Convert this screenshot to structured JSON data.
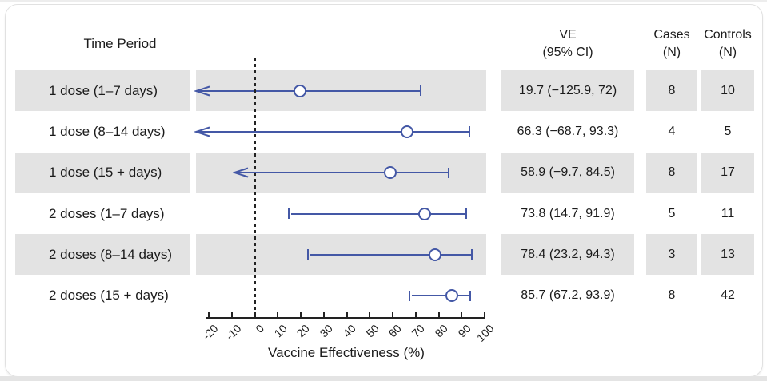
{
  "header": {
    "time_period": "Time Period",
    "ve_line1": "VE",
    "ve_line2": "(95% CI)",
    "cases_line1": "Cases",
    "cases_line2": "(N)",
    "controls_line1": "Controls",
    "controls_line2": "(N)"
  },
  "colors": {
    "line_blue": "#4458a6",
    "band_gray": "#e3e3e3",
    "text_dark": "#1b1b1b",
    "axis_black": "#222222",
    "card_border": "#e1e1e1"
  },
  "chart_data": {
    "type": "forest",
    "title": "",
    "xlabel": "Vaccine Effectiveness (%)",
    "xlim": [
      -20,
      100
    ],
    "x_ticks": [
      -20,
      -10,
      0,
      10,
      20,
      30,
      40,
      50,
      60,
      70,
      80,
      90,
      100
    ],
    "tick_labels": [
      "-20",
      "-10",
      "0",
      "10",
      "20",
      "30",
      "40",
      "50",
      "60",
      "70",
      "80",
      "90",
      "100"
    ],
    "zero_reference_line": 0,
    "legend": "none",
    "grid": "off",
    "rows": [
      {
        "label": "1 dose (1–7 days)",
        "ve": 19.7,
        "ci_low": -125.9,
        "ci_high": 72,
        "ve_text": "19.7 (−125.9, 72)",
        "cases": "8",
        "controls": "10",
        "left_end": "arrow",
        "shaded": true
      },
      {
        "label": "1 dose (8–14 days)",
        "ve": 66.3,
        "ci_low": -68.7,
        "ci_high": 93.3,
        "ve_text": "66.3 (−68.7, 93.3)",
        "cases": "4",
        "controls": "5",
        "left_end": "arrow",
        "shaded": false
      },
      {
        "label": "1 dose (15 + days)",
        "ve": 58.9,
        "ci_low": -9.7,
        "ci_high": 84.5,
        "ve_text": "58.9 (−9.7, 84.5)",
        "cases": "8",
        "controls": "17",
        "left_end": "arrow",
        "shaded": true
      },
      {
        "label": "2 doses (1–7 days)",
        "ve": 73.8,
        "ci_low": 14.7,
        "ci_high": 91.9,
        "ve_text": "73.8 (14.7, 91.9)",
        "cases": "5",
        "controls": "11",
        "left_end": "bar",
        "shaded": false
      },
      {
        "label": "2 doses (8–14 days)",
        "ve": 78.4,
        "ci_low": 23.2,
        "ci_high": 94.3,
        "ve_text": "78.4 (23.2, 94.3)",
        "cases": "3",
        "controls": "13",
        "left_end": "bar",
        "shaded": true
      },
      {
        "label": "2 doses (15 + days)",
        "ve": 85.7,
        "ci_low": 67.2,
        "ci_high": 93.9,
        "ve_text": "85.7 (67.2, 93.9)",
        "cases": "8",
        "controls": "42",
        "left_end": "bar",
        "shaded": false
      }
    ]
  }
}
